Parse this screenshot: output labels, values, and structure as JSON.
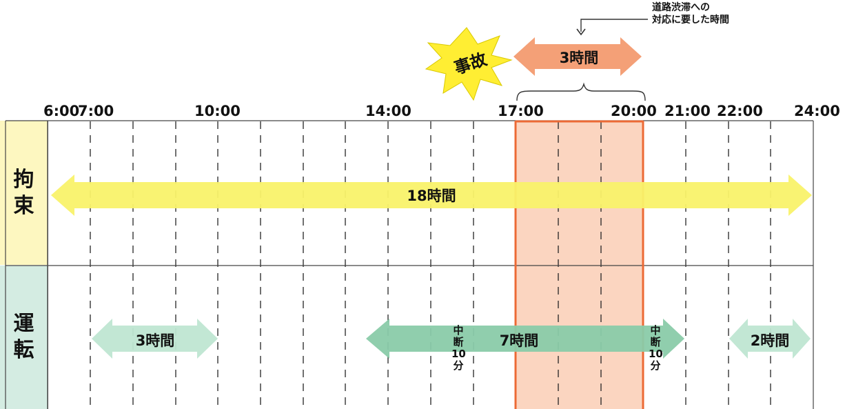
{
  "ticks": [
    "6:00",
    "7:00",
    "10:00",
    "14:00",
    "17:00",
    "20:00",
    "21:00",
    "22:00",
    "24:00"
  ],
  "rows": {
    "kousoku": {
      "chars": [
        "拘",
        "束"
      ],
      "color": "#fdf7c0"
    },
    "unten": {
      "chars": [
        "運",
        "転"
      ],
      "color": "#d4ece2"
    }
  },
  "arrows": {
    "kousoku": {
      "label": "18時間",
      "color": "#f9f26a"
    },
    "drive1": {
      "label": "3時間",
      "color": "#bfe6d2"
    },
    "drive2": {
      "label": "7時間",
      "color": "#8acba9"
    },
    "drive3": {
      "label": "2時間",
      "color": "#bfe6d2"
    },
    "jam": {
      "label": "3時間",
      "color": "#f4a077"
    }
  },
  "breaks": [
    {
      "chars": [
        "中",
        "断",
        "10",
        "分"
      ]
    },
    {
      "chars": [
        "中",
        "断",
        "10",
        "分"
      ]
    }
  ],
  "accident": {
    "label": "事故",
    "color": "#ffee33"
  },
  "annotation": {
    "lines": [
      "道路渋滞への",
      "対応に要した時間"
    ]
  },
  "highlight": {
    "fill": "#fbd5c0",
    "border": "#ec6a35"
  }
}
